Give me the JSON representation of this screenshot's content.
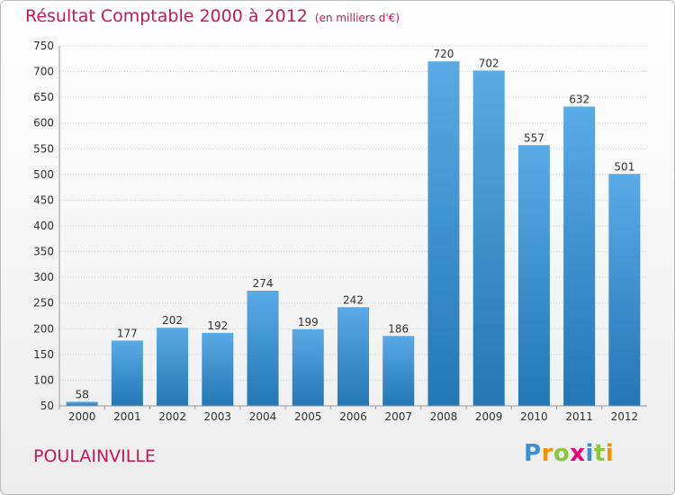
{
  "title": {
    "main": "Résultat Comptable 2000 à 2012",
    "unit": "(en milliers d'€)"
  },
  "city": "POULAINVILLE",
  "logo": {
    "p": "P",
    "r": "r",
    "o": "o",
    "x": "x",
    "i1": "i",
    "t": "t",
    "i2": "i"
  },
  "colors": {
    "bar_top": "#5aaae6",
    "bar_bottom": "#2377b5",
    "title": "#c2185b"
  },
  "chart_data": {
    "type": "bar",
    "title": "Résultat Comptable 2000 à 2012",
    "ylabel": "en milliers d'€",
    "xlabel": "",
    "categories": [
      "2000",
      "2001",
      "2002",
      "2003",
      "2004",
      "2005",
      "2006",
      "2007",
      "2008",
      "2009",
      "2010",
      "2011",
      "2012"
    ],
    "values": [
      58,
      177,
      202,
      192,
      274,
      199,
      242,
      186,
      720,
      702,
      557,
      632,
      501
    ],
    "ylim": [
      50,
      750
    ],
    "yticks": [
      50,
      100,
      150,
      200,
      250,
      300,
      350,
      400,
      450,
      500,
      550,
      600,
      650,
      700,
      750
    ],
    "grid": true,
    "data_labels": true
  }
}
